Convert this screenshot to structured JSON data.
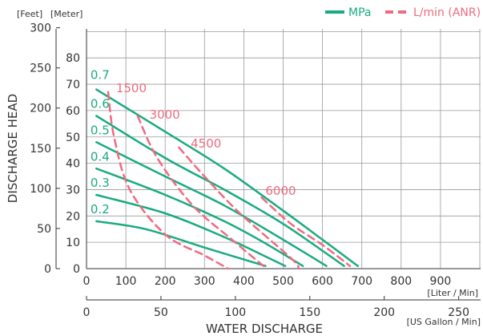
{
  "chart_data": {
    "type": "line",
    "units_top_left": {
      "feet": "[Feet]",
      "meter": "[Meter]"
    },
    "legend": [
      {
        "label": "MPa",
        "color": "#1aab80",
        "style": "solid"
      },
      {
        "label": "L/min (ANR)",
        "color": "#ee6b80",
        "style": "dashed"
      }
    ],
    "ylabel": "DISCHARGE HEAD",
    "xlabel": "WATER DISCHARGE",
    "x_unit_liter": "[Liter / Min]",
    "x_unit_gallon": "[US Gallon / Min]",
    "xlim_liter": [
      0,
      1000
    ],
    "ylim_meter": [
      0,
      90
    ],
    "x_ticks_liter": [
      "0",
      "100",
      "200",
      "300",
      "400",
      "500",
      "600",
      "700",
      "800",
      "900"
    ],
    "x_ticks_liter_values": [
      0,
      100,
      200,
      300,
      400,
      500,
      600,
      700,
      800,
      900
    ],
    "x_ticks_gallon": [
      "0",
      "50",
      "100",
      "150",
      "200",
      "250"
    ],
    "x_ticks_gallon_values": [
      0,
      50,
      100,
      150,
      200,
      250
    ],
    "y_ticks_meter": [
      "0",
      "10",
      "20",
      "30",
      "40",
      "50",
      "60",
      "70",
      "80"
    ],
    "y_ticks_meter_values": [
      0,
      10,
      20,
      30,
      40,
      50,
      60,
      70,
      80
    ],
    "y_ticks_feet": [
      "0",
      "50",
      "100",
      "150",
      "200",
      "250",
      "300"
    ],
    "y_ticks_feet_values": [
      0,
      50,
      100,
      150,
      200,
      250,
      300
    ],
    "pressure_series": [
      {
        "name": "0.7",
        "points": [
          [
            25,
            68
          ],
          [
            200,
            52
          ],
          [
            350,
            38
          ],
          [
            500,
            22
          ],
          [
            600,
            11
          ],
          [
            690,
            1
          ]
        ]
      },
      {
        "name": "0.6",
        "points": [
          [
            25,
            58
          ],
          [
            200,
            42
          ],
          [
            350,
            30
          ],
          [
            500,
            17
          ],
          [
            655,
            1
          ]
        ]
      },
      {
        "name": "0.5",
        "points": [
          [
            25,
            48
          ],
          [
            200,
            35
          ],
          [
            350,
            24
          ],
          [
            500,
            11
          ],
          [
            610,
            1
          ]
        ]
      },
      {
        "name": "0.4",
        "points": [
          [
            25,
            38
          ],
          [
            200,
            28
          ],
          [
            350,
            18
          ],
          [
            450,
            10
          ],
          [
            550,
            1
          ]
        ]
      },
      {
        "name": "0.3",
        "points": [
          [
            25,
            28
          ],
          [
            200,
            21
          ],
          [
            350,
            12
          ],
          [
            450,
            5
          ],
          [
            505,
            1
          ]
        ]
      },
      {
        "name": "0.2",
        "points": [
          [
            25,
            18
          ],
          [
            150,
            15
          ],
          [
            300,
            8
          ],
          [
            455,
            1
          ]
        ]
      }
    ],
    "airflow_series": [
      {
        "name": "1500",
        "points": [
          [
            55,
            67
          ],
          [
            70,
            50
          ],
          [
            110,
            30
          ],
          [
            200,
            13
          ],
          [
            300,
            5
          ],
          [
            360,
            0
          ]
        ]
      },
      {
        "name": "3000",
        "points": [
          [
            130,
            58
          ],
          [
            180,
            42
          ],
          [
            270,
            24
          ],
          [
            370,
            11
          ],
          [
            450,
            1
          ]
        ]
      },
      {
        "name": "4500",
        "points": [
          [
            235,
            46
          ],
          [
            300,
            35
          ],
          [
            390,
            21
          ],
          [
            520,
            4
          ],
          [
            540,
            0
          ]
        ]
      },
      {
        "name": "6000",
        "points": [
          [
            445,
            27
          ],
          [
            520,
            17
          ],
          [
            600,
            9
          ],
          [
            670,
            1
          ]
        ]
      }
    ],
    "pressure_labels": [
      {
        "text": "0.7",
        "x": 10,
        "y": 72
      },
      {
        "text": "0.6",
        "x": 10,
        "y": 61
      },
      {
        "text": "0.5",
        "x": 10,
        "y": 51
      },
      {
        "text": "0.4",
        "x": 10,
        "y": 41
      },
      {
        "text": "0.3",
        "x": 10,
        "y": 31
      },
      {
        "text": "0.2",
        "x": 10,
        "y": 21
      }
    ],
    "airflow_labels": [
      {
        "text": "1500",
        "x": 75,
        "y": 67
      },
      {
        "text": "3000",
        "x": 160,
        "y": 57
      },
      {
        "text": "4500",
        "x": 265,
        "y": 46
      },
      {
        "text": "6000",
        "x": 455,
        "y": 28
      }
    ],
    "grid": true
  }
}
